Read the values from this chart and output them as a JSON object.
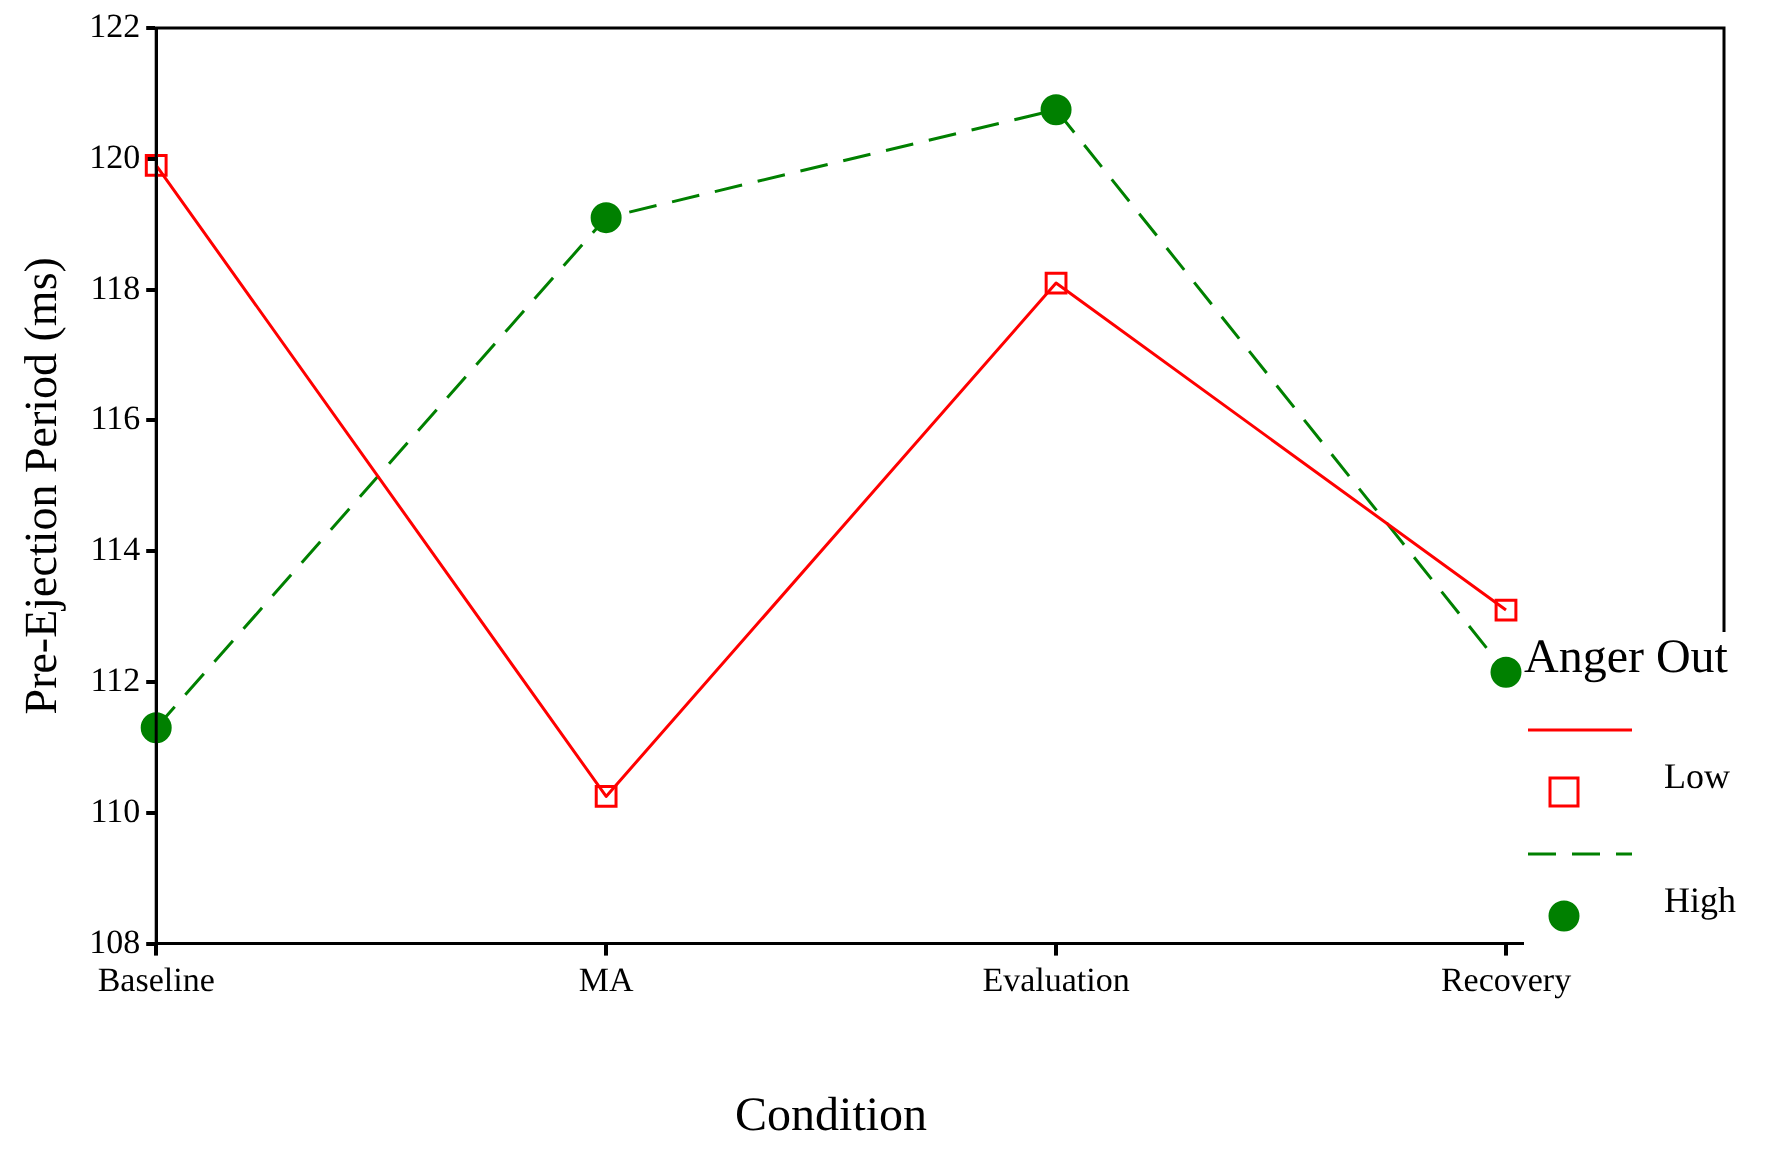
{
  "chart_data": {
    "type": "line",
    "xlabel": "Condition",
    "ylabel": "Pre-Ejection Period (ms)",
    "legend_title": "Anger Out",
    "legend": "right",
    "grid": false,
    "categories": [
      "Baseline",
      "MA",
      "Evaluation",
      "Recovery"
    ],
    "ylim": [
      108,
      122
    ],
    "yticks": [
      108,
      110,
      112,
      114,
      116,
      118,
      120,
      122
    ],
    "series": [
      {
        "name": "Low",
        "color": "#ff0000",
        "marker": "square",
        "line_style": "solid",
        "values": [
          119.9,
          110.25,
          118.1,
          113.1
        ]
      },
      {
        "name": "High",
        "color": "#008000",
        "marker": "circle",
        "line_style": "dashed",
        "values": [
          111.3,
          119.1,
          120.75,
          112.15
        ]
      }
    ]
  }
}
